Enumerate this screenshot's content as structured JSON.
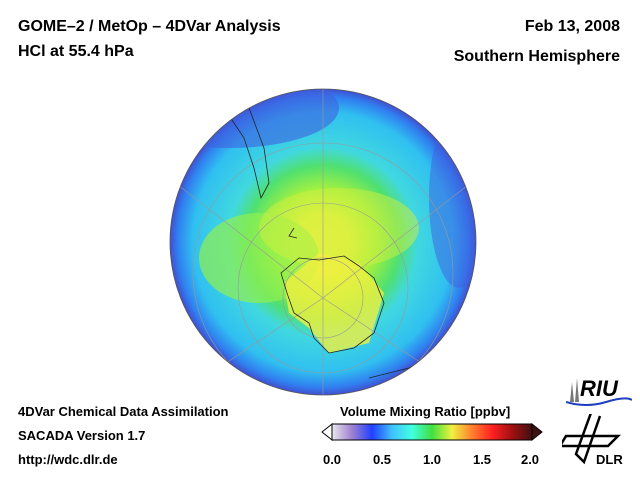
{
  "header": {
    "title_line1": "GOME–2 / MetOp – 4DVar Analysis",
    "title_line2": "HCl at 55.4 hPa",
    "date": "Feb 13, 2008",
    "region": "Southern Hemisphere"
  },
  "footer": {
    "line1": "4DVar Chemical Data Assimilation",
    "line2": "SACADA Version 1.7",
    "line3": "http://wdc.dlr.de"
  },
  "colorbar": {
    "title": "Volume Mixing Ratio [ppbv]",
    "ticks": [
      "0.0",
      "0.5",
      "1.0",
      "1.5",
      "2.0"
    ],
    "range": [
      0,
      2
    ],
    "colors": [
      "#e8e8f0",
      "#a080d0",
      "#2040ff",
      "#40c0ff",
      "#40ffe0",
      "#40e040",
      "#f0f040",
      "#ff8030",
      "#ff2020",
      "#a01010",
      "#401010"
    ]
  },
  "logos": {
    "riu": "RIU",
    "dlr": "DLR"
  }
}
